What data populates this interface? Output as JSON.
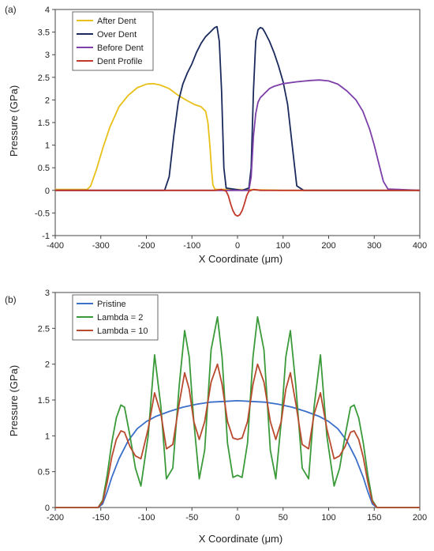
{
  "chart_data": [
    {
      "panel_label": "(a)",
      "type": "line",
      "xlabel": "X Coordinate (μm)",
      "ylabel": "Pressure (GPa)",
      "xlim": [
        -400,
        400
      ],
      "ylim": [
        -1,
        4
      ],
      "xticks": [
        -400,
        -300,
        -200,
        -100,
        0,
        100,
        200,
        300,
        400
      ],
      "yticks": [
        -1,
        -0.5,
        0,
        0.5,
        1,
        1.5,
        2,
        2.5,
        3,
        3.5,
        4
      ],
      "xtick_labels": [
        "-400",
        "-300",
        "-200",
        "-100",
        "0",
        "100",
        "200",
        "300",
        "400"
      ],
      "ytick_labels": [
        "-1",
        "-0.5",
        "0",
        "0.5",
        "1",
        "1.5",
        "2",
        "2.5",
        "3",
        "3.5",
        "4"
      ],
      "grid": false,
      "legend": "top-left",
      "series": [
        {
          "name": "After Dent",
          "color": "#e8c019",
          "x": [
            -400,
            -330,
            -322,
            -310,
            -295,
            -280,
            -260,
            -240,
            -220,
            -200,
            -185,
            -170,
            -150,
            -130,
            -110,
            -95,
            -80,
            -70,
            -65,
            -60,
            -57,
            -54,
            -50,
            -45,
            0,
            100,
            400
          ],
          "y": [
            0.02,
            0.02,
            0.1,
            0.45,
            0.95,
            1.4,
            1.85,
            2.1,
            2.27,
            2.35,
            2.36,
            2.33,
            2.25,
            2.1,
            1.98,
            1.9,
            1.85,
            1.75,
            1.5,
            0.9,
            0.45,
            0.12,
            0.03,
            0.02,
            0.02,
            0.0,
            0.0
          ]
        },
        {
          "name": "Over Dent",
          "color": "#1a2a5c",
          "x": [
            -400,
            -160,
            -150,
            -140,
            -130,
            -120,
            -110,
            -100,
            -90,
            -80,
            -70,
            -60,
            -50,
            -45,
            -40,
            -35,
            -30,
            -25,
            10,
            25,
            30,
            35,
            40,
            45,
            50,
            55,
            60,
            70,
            80,
            90,
            100,
            110,
            120,
            130,
            145,
            400
          ],
          "y": [
            0.0,
            0.0,
            0.3,
            1.2,
            1.95,
            2.35,
            2.6,
            2.8,
            3.05,
            3.25,
            3.4,
            3.5,
            3.6,
            3.62,
            3.3,
            2.2,
            0.5,
            0.05,
            0.0,
            0.05,
            0.5,
            2.2,
            3.3,
            3.55,
            3.6,
            3.58,
            3.5,
            3.3,
            3.05,
            2.75,
            2.4,
            1.9,
            1.0,
            0.1,
            0.0,
            0.0
          ]
        },
        {
          "name": "Before Dent",
          "color": "#7d3fa8",
          "x": [
            -400,
            25,
            30,
            35,
            40,
            45,
            50,
            55,
            60,
            70,
            80,
            100,
            130,
            160,
            180,
            200,
            220,
            240,
            260,
            275,
            290,
            300,
            310,
            320,
            330,
            400
          ],
          "y": [
            0.0,
            0.0,
            0.3,
            1.2,
            1.7,
            1.95,
            2.05,
            2.1,
            2.15,
            2.25,
            2.3,
            2.36,
            2.4,
            2.43,
            2.44,
            2.42,
            2.35,
            2.2,
            2.0,
            1.75,
            1.35,
            1.0,
            0.6,
            0.2,
            0.03,
            0.0
          ]
        },
        {
          "name": "Dent Profile",
          "color": "#c0392b",
          "x": [
            -400,
            -50,
            -35,
            -25,
            -20,
            -15,
            -10,
            -5,
            0,
            5,
            10,
            15,
            20,
            25,
            35,
            50,
            400
          ],
          "y": [
            0.0,
            0.0,
            0.02,
            -0.02,
            -0.12,
            -0.3,
            -0.45,
            -0.54,
            -0.57,
            -0.54,
            -0.45,
            -0.3,
            -0.12,
            -0.02,
            0.02,
            0.0,
            0.0
          ]
        }
      ]
    },
    {
      "panel_label": "(b)",
      "type": "line",
      "xlabel": "X Coordinate (μm)",
      "ylabel": "Pressure (GPa)",
      "xlim": [
        -200,
        200
      ],
      "ylim": [
        0,
        3
      ],
      "xticks": [
        -200,
        -150,
        -100,
        -50,
        0,
        50,
        100,
        150,
        200
      ],
      "yticks": [
        0,
        0.5,
        1,
        1.5,
        2,
        2.5,
        3
      ],
      "xtick_labels": [
        "-200",
        "-150",
        "-100",
        "-50",
        "0",
        "50",
        "100",
        "150",
        "200"
      ],
      "ytick_labels": [
        "0",
        "0.5",
        "1",
        "1.5",
        "2",
        "2.5",
        "3"
      ],
      "grid": false,
      "legend": "top-left",
      "series": [
        {
          "name": "Pristine",
          "color": "#3b6fc9",
          "x": [
            -200,
            -153,
            -148,
            -143,
            -138,
            -130,
            -120,
            -110,
            -100,
            -90,
            -75,
            -60,
            -45,
            -30,
            -15,
            0,
            15,
            30,
            45,
            60,
            75,
            90,
            100,
            110,
            120,
            130,
            138,
            143,
            148,
            153,
            200
          ],
          "y": [
            0,
            0,
            0.05,
            0.22,
            0.42,
            0.68,
            0.93,
            1.1,
            1.2,
            1.27,
            1.34,
            1.4,
            1.44,
            1.47,
            1.48,
            1.49,
            1.48,
            1.47,
            1.44,
            1.4,
            1.34,
            1.27,
            1.2,
            1.1,
            0.93,
            0.68,
            0.42,
            0.22,
            0.05,
            0,
            0
          ]
        },
        {
          "name": "Lambda = 2",
          "color": "#3a9a3a",
          "x": [
            -200,
            -153,
            -148,
            -143,
            -138,
            -133,
            -128,
            -124,
            -118,
            -112,
            -106,
            -98,
            -91,
            -84,
            -78,
            -71,
            -64,
            -58,
            -53,
            -48,
            -42,
            -36,
            -29,
            -22,
            -17,
            -11,
            -5,
            0,
            5,
            11,
            17,
            22,
            29,
            36,
            42,
            48,
            53,
            58,
            64,
            71,
            78,
            84,
            91,
            98,
            106,
            112,
            118,
            124,
            128,
            133,
            138,
            143,
            148,
            153,
            200
          ],
          "y": [
            0,
            0,
            0.1,
            0.45,
            0.9,
            1.25,
            1.43,
            1.4,
            1.0,
            0.55,
            0.3,
            1.0,
            2.13,
            1.4,
            0.4,
            0.55,
            1.7,
            2.47,
            2.1,
            1.2,
            0.4,
            0.8,
            2.2,
            2.66,
            2.1,
            0.9,
            0.42,
            0.45,
            0.42,
            0.9,
            2.1,
            2.66,
            2.2,
            0.8,
            0.4,
            1.2,
            2.1,
            2.47,
            1.7,
            0.55,
            0.4,
            1.4,
            2.13,
            1.0,
            0.3,
            0.55,
            1.0,
            1.4,
            1.43,
            1.25,
            0.9,
            0.45,
            0.1,
            0,
            0
          ]
        },
        {
          "name": "Lambda = 10",
          "color": "#b84a2e",
          "x": [
            -200,
            -153,
            -148,
            -143,
            -138,
            -133,
            -128,
            -124,
            -118,
            -112,
            -106,
            -98,
            -91,
            -84,
            -78,
            -71,
            -64,
            -58,
            -53,
            -48,
            -42,
            -36,
            -29,
            -22,
            -17,
            -11,
            -5,
            0,
            5,
            11,
            17,
            22,
            29,
            36,
            42,
            48,
            53,
            58,
            64,
            71,
            78,
            84,
            91,
            98,
            106,
            112,
            118,
            124,
            128,
            133,
            138,
            143,
            148,
            153,
            200
          ],
          "y": [
            0,
            0,
            0.08,
            0.35,
            0.7,
            0.95,
            1.07,
            1.05,
            0.85,
            0.72,
            0.68,
            1.1,
            1.6,
            1.3,
            0.82,
            0.88,
            1.45,
            1.88,
            1.65,
            1.2,
            0.95,
            1.2,
            1.75,
            2.0,
            1.72,
            1.2,
            0.97,
            0.95,
            0.97,
            1.2,
            1.72,
            2.0,
            1.75,
            1.2,
            0.95,
            1.2,
            1.65,
            1.88,
            1.45,
            0.88,
            0.82,
            1.3,
            1.6,
            1.1,
            0.68,
            0.72,
            0.85,
            1.05,
            1.07,
            0.95,
            0.7,
            0.35,
            0.08,
            0,
            0
          ]
        }
      ]
    }
  ]
}
